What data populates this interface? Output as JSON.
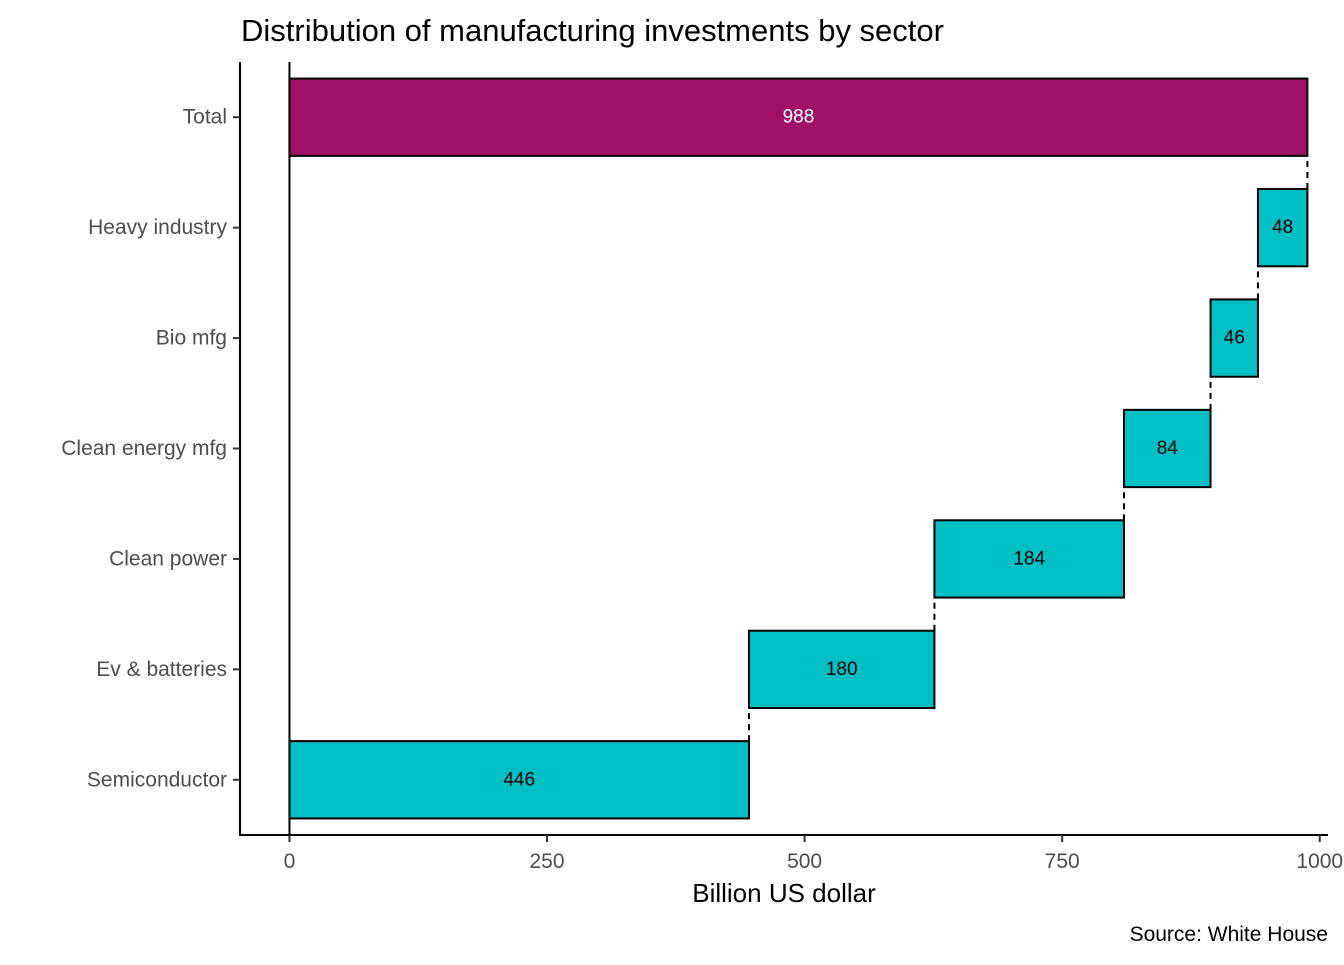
{
  "chart_data": {
    "type": "bar",
    "subtype": "waterfall",
    "orientation": "horizontal",
    "title": "Distribution of manufacturing investments by sector",
    "xlabel": "Billion US dollar",
    "ylabel": "",
    "caption": "Source: White House",
    "xlim": [
      -48,
      1008
    ],
    "xticks": [
      0,
      250,
      500,
      750,
      1000
    ],
    "xtick_labels": [
      "0",
      "250",
      "500",
      "750",
      "1000"
    ],
    "grid": false,
    "legend": "none",
    "categories": [
      "Semiconductor",
      "Ev & batteries",
      "Clean power",
      "Clean energy mfg",
      "Bio mfg",
      "Heavy industry",
      "Total"
    ],
    "values": [
      446,
      180,
      184,
      84,
      46,
      48,
      988
    ],
    "total_category": "Total",
    "colors": {
      "step": "#00BFC4",
      "total": "#A01068",
      "outline": "#000000",
      "step_label": "#000000",
      "total_label": "#ffffff"
    }
  }
}
